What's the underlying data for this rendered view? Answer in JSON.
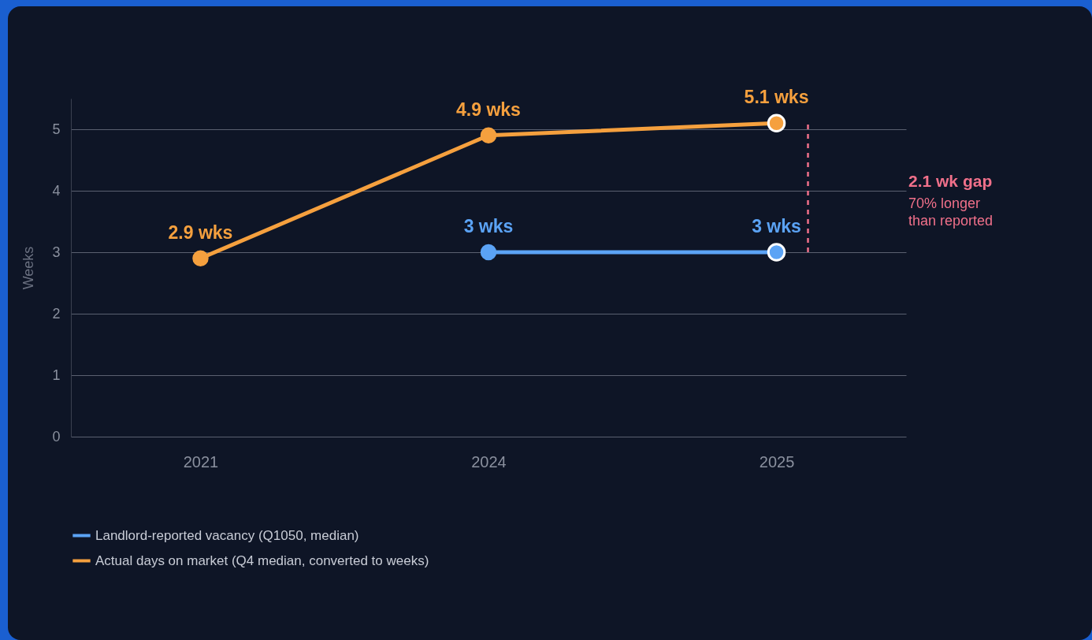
{
  "chart_data": {
    "type": "line",
    "ylabel": "Weeks",
    "categories": [
      "2021",
      "2024",
      "2025"
    ],
    "series": [
      {
        "name": "Landlord-reported vacancy (Q1050, median)",
        "color": "#5ba3f5",
        "values": [
          null,
          3,
          3
        ],
        "value_labels": [
          null,
          "3 wks",
          "3 wks"
        ]
      },
      {
        "name": "Actual days on market (Q4 median, converted to weeks)",
        "color": "#f5a03e",
        "values": [
          2.9,
          4.9,
          5.1
        ],
        "value_labels": [
          "2.9 wks",
          "4.9 wks",
          "5.1 wks"
        ]
      }
    ],
    "ylim": [
      0,
      5.5
    ],
    "yticks": [
      0,
      1,
      2,
      3,
      4,
      5
    ],
    "grid": "y",
    "legend": "bottom",
    "marker": "circle",
    "annotations": [
      "2.1 wk gap",
      "70% longer than reported"
    ]
  }
}
